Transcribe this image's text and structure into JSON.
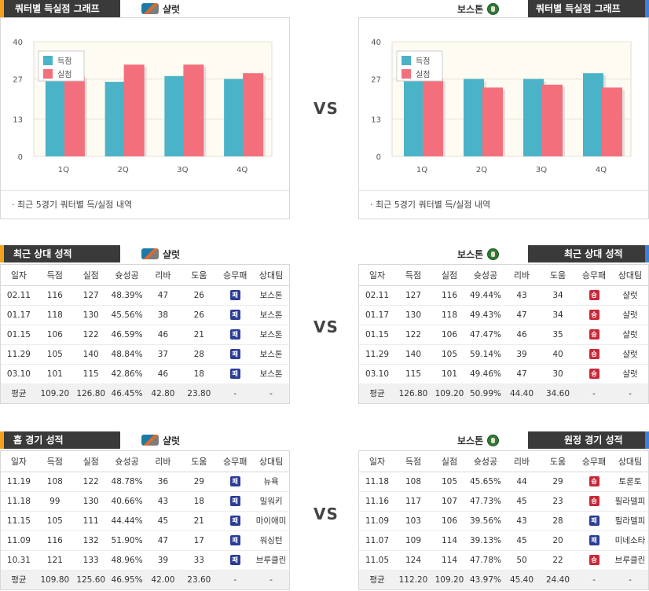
{
  "colors": {
    "score": "#4ab3c7",
    "allowed": "#f46f7c",
    "header": "#3a3a3a",
    "accent": "#f3a21b",
    "win": "#c8283a",
    "lose": "#2b3d97"
  },
  "vs": "VS",
  "quarter_chart": {
    "title": "쿼터별 득실점 그래프",
    "legend": {
      "score": "득점",
      "allowed": "실점"
    },
    "note": "· 최근 5경기 쿼터별 득/실점 내역",
    "y_ticks": [
      "0",
      "13",
      "27",
      "40"
    ]
  },
  "teams": {
    "home": "샬럿",
    "away": "보스톤"
  },
  "chart_data": [
    {
      "type": "bar",
      "team": "샬럿",
      "categories": [
        "1Q",
        "2Q",
        "3Q",
        "4Q"
      ],
      "series": [
        {
          "name": "득점",
          "values": [
            27,
            26,
            28,
            27
          ]
        },
        {
          "name": "실점",
          "values": [
            28,
            32,
            32,
            29
          ]
        }
      ],
      "ylim": [
        0,
        40
      ],
      "legend": "top-left",
      "grid": true
    },
    {
      "type": "bar",
      "team": "보스톤",
      "categories": [
        "1Q",
        "2Q",
        "3Q",
        "4Q"
      ],
      "series": [
        {
          "name": "득점",
          "values": [
            31,
            27,
            27,
            29
          ]
        },
        {
          "name": "실점",
          "values": [
            27,
            24,
            25,
            24
          ]
        }
      ],
      "ylim": [
        0,
        40
      ],
      "legend": "top-left",
      "grid": true
    }
  ],
  "recent": {
    "title": "최근 상대 성적",
    "columns": [
      "일자",
      "득점",
      "실점",
      "슛성공",
      "리바",
      "도움",
      "승무패",
      "상대팀"
    ],
    "home_rows": [
      [
        "02.11",
        "116",
        "127",
        "48.39%",
        "47",
        "26",
        "패",
        "보스톤"
      ],
      [
        "01.17",
        "118",
        "130",
        "45.56%",
        "38",
        "26",
        "패",
        "보스톤"
      ],
      [
        "01.15",
        "106",
        "122",
        "46.59%",
        "46",
        "21",
        "패",
        "보스톤"
      ],
      [
        "11.29",
        "105",
        "140",
        "48.84%",
        "37",
        "28",
        "패",
        "보스톤"
      ],
      [
        "03.10",
        "101",
        "115",
        "42.86%",
        "46",
        "18",
        "패",
        "보스톤"
      ]
    ],
    "home_avg": [
      "평균",
      "109.20",
      "126.80",
      "46.45%",
      "42.80",
      "23.80",
      "-",
      "-"
    ],
    "away_rows": [
      [
        "02.11",
        "127",
        "116",
        "49.44%",
        "43",
        "34",
        "승",
        "샬럿"
      ],
      [
        "01.17",
        "130",
        "118",
        "49.43%",
        "47",
        "34",
        "승",
        "샬럿"
      ],
      [
        "01.15",
        "122",
        "106",
        "47.47%",
        "46",
        "35",
        "승",
        "샬럿"
      ],
      [
        "11.29",
        "140",
        "105",
        "59.14%",
        "39",
        "40",
        "승",
        "샬럿"
      ],
      [
        "03.10",
        "115",
        "101",
        "49.46%",
        "47",
        "30",
        "승",
        "샬럿"
      ]
    ],
    "away_avg": [
      "평균",
      "126.80",
      "109.20",
      "50.99%",
      "44.40",
      "34.60",
      "-",
      "-"
    ]
  },
  "homegames": {
    "title": "홈 경기 성적",
    "columns": [
      "일자",
      "득점",
      "실점",
      "슛성공",
      "리바",
      "도움",
      "승무패",
      "상대팀"
    ],
    "rows": [
      [
        "11.19",
        "108",
        "122",
        "48.78%",
        "36",
        "29",
        "패",
        "뉴욕"
      ],
      [
        "11.18",
        "99",
        "130",
        "40.66%",
        "43",
        "18",
        "패",
        "밀워키"
      ],
      [
        "11.15",
        "105",
        "111",
        "44.44%",
        "45",
        "21",
        "패",
        "마이애미"
      ],
      [
        "11.09",
        "116",
        "132",
        "51.90%",
        "47",
        "17",
        "패",
        "워싱턴"
      ],
      [
        "10.31",
        "121",
        "133",
        "48.96%",
        "39",
        "33",
        "패",
        "브루클린"
      ]
    ],
    "avg": [
      "평균",
      "109.80",
      "125.60",
      "46.95%",
      "42.00",
      "23.60",
      "-",
      "-"
    ]
  },
  "awaygames": {
    "title": "원정 경기 성적",
    "columns": [
      "일자",
      "득점",
      "실점",
      "슛성공",
      "리바",
      "도움",
      "승무패",
      "상대팀"
    ],
    "rows": [
      [
        "11.18",
        "108",
        "105",
        "45.65%",
        "44",
        "29",
        "승",
        "토론토"
      ],
      [
        "11.16",
        "117",
        "107",
        "47.73%",
        "45",
        "23",
        "승",
        "필라델피"
      ],
      [
        "11.09",
        "103",
        "106",
        "39.56%",
        "43",
        "28",
        "패",
        "필라델피"
      ],
      [
        "11.07",
        "109",
        "114",
        "39.13%",
        "45",
        "20",
        "패",
        "미네소타"
      ],
      [
        "11.05",
        "124",
        "114",
        "47.78%",
        "50",
        "22",
        "승",
        "브루클린"
      ]
    ],
    "avg": [
      "평균",
      "112.20",
      "109.20",
      "43.97%",
      "45.40",
      "24.40",
      "-",
      "-"
    ]
  }
}
